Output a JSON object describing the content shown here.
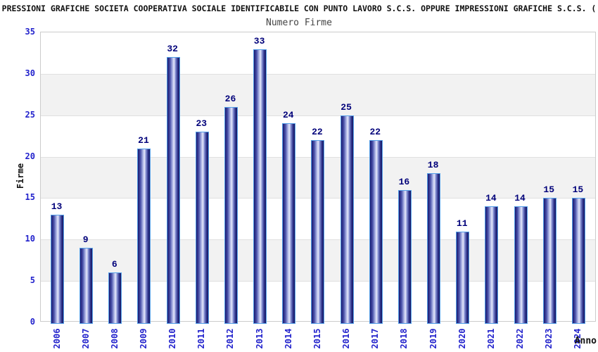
{
  "chart_data": {
    "type": "bar",
    "title": "PRESSIONI GRAFICHE SOCIETA COOPERATIVA SOCIALE IDENTIFICABILE CON PUNTO LAVORO S.C.S. OPPURE IMPRESSIONI GRAFICHE S.C.S. (",
    "subtitle": "Numero Firme",
    "xlabel": "Anno",
    "ylabel": "Firme",
    "categories": [
      "2006",
      "2007",
      "2008",
      "2009",
      "2010",
      "2011",
      "2012",
      "2013",
      "2014",
      "2015",
      "2016",
      "2017",
      "2018",
      "2019",
      "2020",
      "2021",
      "2022",
      "2023",
      "2024"
    ],
    "values": [
      13,
      9,
      6,
      21,
      32,
      23,
      26,
      33,
      24,
      22,
      25,
      22,
      16,
      18,
      11,
      14,
      14,
      15,
      15
    ],
    "ylim": [
      0,
      35
    ],
    "yticks": [
      0,
      5,
      10,
      15,
      20,
      25,
      30,
      35
    ],
    "gray_bands": [
      [
        5,
        10
      ],
      [
        15,
        20
      ],
      [
        25,
        30
      ]
    ],
    "grid": "horizontal band boundaries",
    "legend": "none",
    "colors": {
      "bar_border": "#55a0e8",
      "bar_gradient": [
        "#191970",
        "#4a52aa",
        "#aab2e4",
        "#e6e9fa",
        "#8f99d8",
        "#30368f",
        "#15155e"
      ],
      "bar_gradient_stops": [
        0,
        22,
        42,
        55,
        66,
        85,
        100
      ],
      "value_label": "#00007a",
      "axis_tick_label": "#2222cc",
      "band_fill": "#f2f2f2",
      "gridline": "#e0e0e0",
      "plot_border": "#cccccc",
      "title_color": "#111111",
      "subtitle_color": "#444444",
      "axis_title_color": "#111111"
    }
  }
}
